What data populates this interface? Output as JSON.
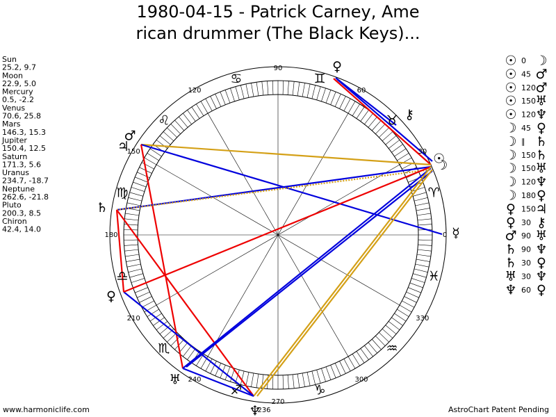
{
  "header": {
    "title_lines": [
      "1980-04-15 - Patrick Carney, Ame",
      "rican drummer (The Black Keys)..."
    ]
  },
  "planets": [
    {
      "name": "Sun",
      "coords": "25.2, 9.7",
      "glyph": "☉"
    },
    {
      "name": "Moon",
      "coords": "22.9, 5.0",
      "glyph": "☽"
    },
    {
      "name": "Mercury",
      "coords": "0.5, -2.2",
      "glyph": "☿"
    },
    {
      "name": "Venus",
      "coords": "70.6, 25.8",
      "glyph": "♀"
    },
    {
      "name": "Mars",
      "coords": "146.3, 15.3",
      "glyph": "♂"
    },
    {
      "name": "Jupiter",
      "coords": "150.4, 12.5",
      "glyph": "♃"
    },
    {
      "name": "Saturn",
      "coords": "171.3, 5.6",
      "glyph": "♄"
    },
    {
      "name": "Uranus",
      "coords": "234.7, -18.7",
      "glyph": "♅"
    },
    {
      "name": "Neptune",
      "coords": "262.6, -21.8",
      "glyph": "♆"
    },
    {
      "name": "Pluto",
      "coords": "200.3, 8.5",
      "glyph": "♀"
    },
    {
      "name": "Chiron",
      "coords": "42.4, 14.0",
      "glyph": "⚷"
    }
  ],
  "wheel": {
    "degree_labels": [
      90,
      60,
      120,
      30,
      150,
      180,
      0,
      210,
      330,
      240,
      300,
      270
    ],
    "ascendant_label": 236,
    "signs": [
      "♈",
      "♉",
      "♊",
      "♋",
      "♌",
      "♍",
      "♎",
      "♏",
      "♐",
      "♑",
      "♒",
      "♓"
    ]
  },
  "aspects": [
    {
      "from": "☉",
      "angle": 0,
      "to": "☽"
    },
    {
      "from": "☉",
      "angle": 45,
      "to": "♂"
    },
    {
      "from": "☉",
      "angle": 120,
      "to": "♂"
    },
    {
      "from": "☉",
      "angle": 150,
      "to": "♅"
    },
    {
      "from": "☉",
      "angle": 120,
      "to": "♆"
    },
    {
      "from": "☽",
      "angle": 45,
      "to": "♀"
    },
    {
      "from": "☽",
      "angle": "∥",
      "to": "♄"
    },
    {
      "from": "☽",
      "angle": 150,
      "to": "♄"
    },
    {
      "from": "☽",
      "angle": 150,
      "to": "♅"
    },
    {
      "from": "☽",
      "angle": 120,
      "to": "♆"
    },
    {
      "from": "☽",
      "angle": 180,
      "to": "♀"
    },
    {
      "from": "♀",
      "angle": 150,
      "to": "♃"
    },
    {
      "from": "♀",
      "angle": 30,
      "to": "⚷"
    },
    {
      "from": "♂",
      "angle": 90,
      "to": "♅"
    },
    {
      "from": "♄",
      "angle": 90,
      "to": "♆"
    },
    {
      "from": "♄",
      "angle": 30,
      "to": "♀"
    },
    {
      "from": "♅",
      "angle": 30,
      "to": "♆"
    },
    {
      "from": "♆",
      "angle": 60,
      "to": "♀"
    }
  ],
  "footer": {
    "left": "www.harmoniclife.com",
    "right": "AstroChart Patent Pending"
  }
}
